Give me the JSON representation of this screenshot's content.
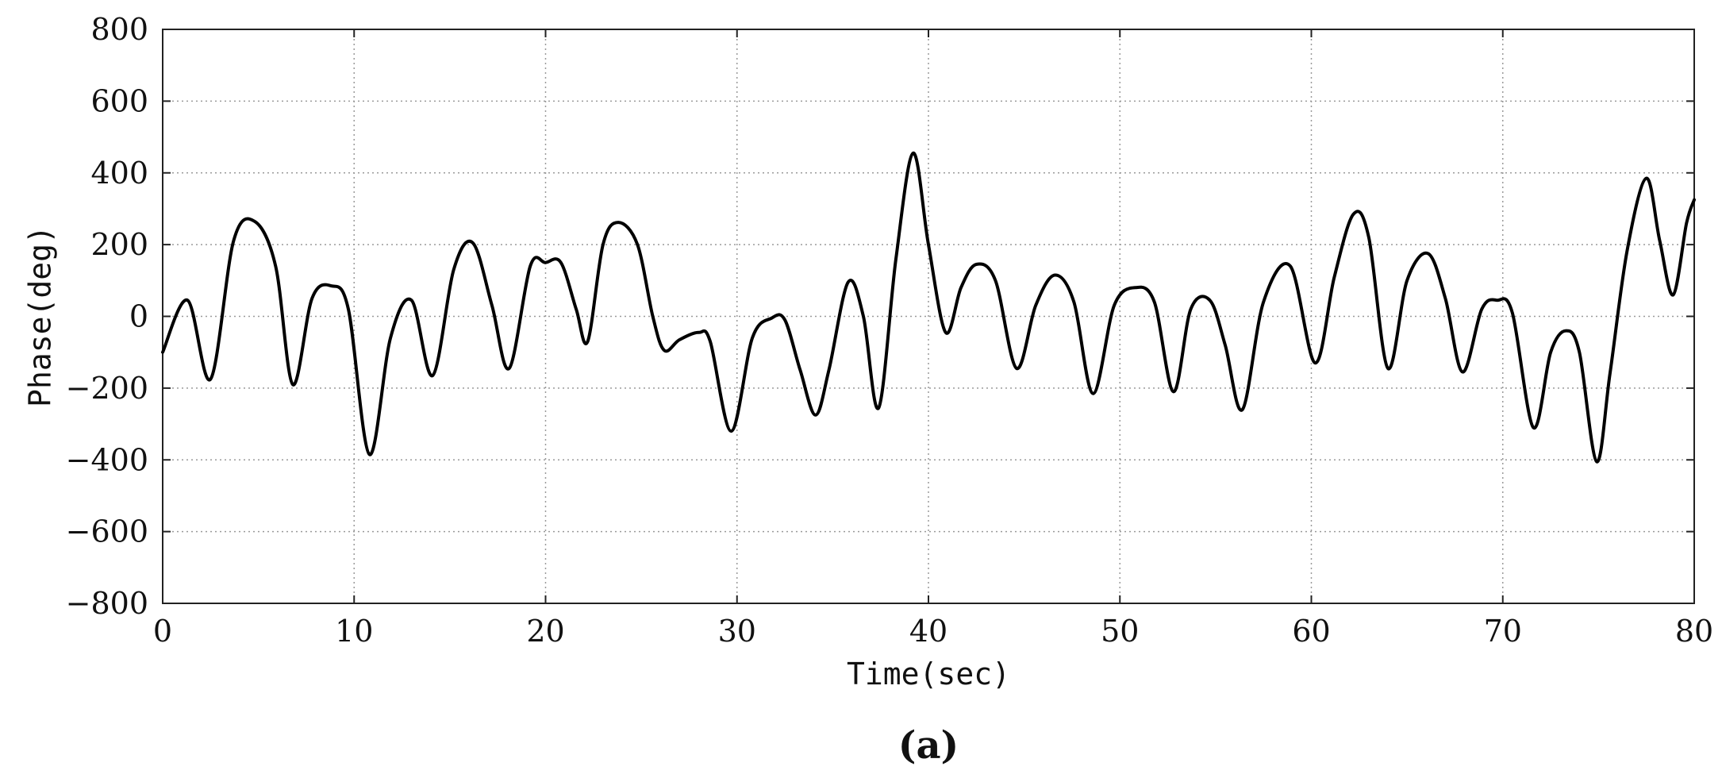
{
  "chart_data": {
    "type": "line",
    "panel_label": "(a)",
    "xlabel": "Time(sec)",
    "ylabel": "Phase(deg)",
    "xlim": [
      0,
      80
    ],
    "ylim": [
      -800,
      800
    ],
    "xticks": [
      0,
      10,
      20,
      30,
      40,
      50,
      60,
      70,
      80
    ],
    "yticks": [
      -800,
      -600,
      -400,
      -200,
      0,
      200,
      400,
      600,
      800
    ],
    "xtick_labels": [
      "0",
      "10",
      "20",
      "30",
      "40",
      "50",
      "60",
      "70",
      "80"
    ],
    "ytick_labels": [
      "−800",
      "−600",
      "−400",
      "−200",
      "0",
      "200",
      "400",
      "600",
      "800"
    ],
    "grid": true,
    "line_color": "#000000",
    "series": [
      {
        "x": [
          0,
          1.3,
          2.5,
          3.7,
          4.8,
          5.9,
          6.8,
          7.8,
          8.8,
          9.7,
          10.8,
          11.9,
          13.0,
          14.1,
          15.2,
          16.2,
          17.2,
          18.1,
          19.2,
          20.0,
          20.8,
          21.6,
          22.2,
          23.0,
          23.8,
          24.8,
          25.6,
          26.2,
          27.0,
          28.0,
          28.6,
          29.7,
          30.8,
          31.8,
          32.5,
          33.3,
          34.1,
          34.8,
          35.8,
          36.6,
          37.4,
          38.3,
          39.2,
          40.0,
          40.9,
          41.7,
          42.5,
          43.5,
          44.6,
          45.6,
          46.6,
          47.6,
          48.6,
          49.7,
          50.8,
          51.8,
          52.8,
          53.7,
          54.7,
          55.5,
          56.4,
          57.5,
          58.9,
          60.2,
          61.2,
          62.2,
          63.0,
          64.0,
          65.0,
          66.1,
          67.0,
          67.9,
          68.9,
          69.7,
          70.5,
          71.6,
          72.5,
          73.3,
          74.0,
          74.9,
          75.6,
          76.5,
          77.5,
          78.2,
          78.9,
          79.6,
          80.0
        ],
        "y": [
          -100,
          45,
          -175,
          210,
          265,
          140,
          -190,
          50,
          85,
          20,
          -385,
          -60,
          45,
          -165,
          130,
          205,
          30,
          -145,
          140,
          150,
          150,
          20,
          -70,
          200,
          262,
          200,
          0,
          -95,
          -65,
          -45,
          -70,
          -320,
          -60,
          -5,
          -10,
          -150,
          -275,
          -150,
          95,
          0,
          -255,
          160,
          455,
          200,
          -45,
          80,
          145,
          100,
          -145,
          30,
          115,
          40,
          -215,
          30,
          80,
          40,
          -210,
          20,
          45,
          -80,
          -260,
          40,
          140,
          -130,
          110,
          285,
          220,
          -145,
          100,
          175,
          50,
          -155,
          20,
          45,
          10,
          -310,
          -100,
          -40,
          -100,
          -405,
          -160,
          185,
          385,
          210,
          60,
          260,
          325
        ]
      }
    ]
  }
}
